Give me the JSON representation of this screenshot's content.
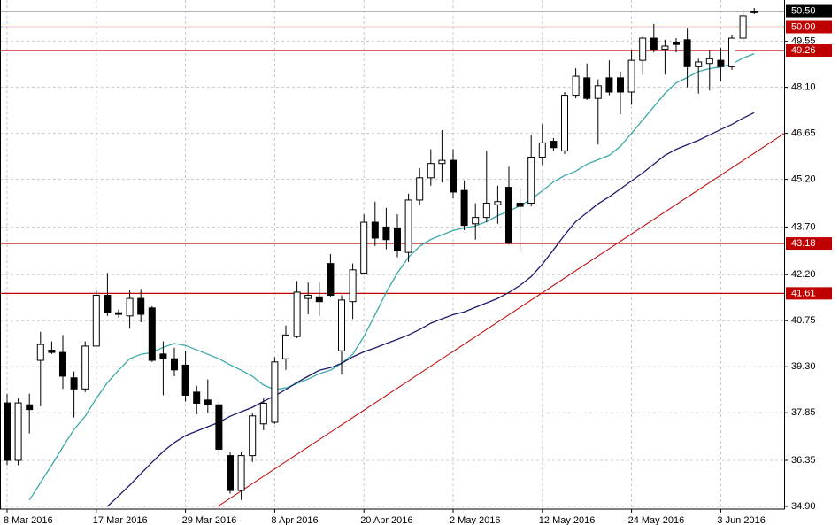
{
  "chart_data": {
    "type": "candlestick",
    "categories": [
      "8 Mar 2016",
      null,
      null,
      null,
      null,
      null,
      null,
      null,
      "17 Mar 2016",
      null,
      null,
      null,
      null,
      null,
      null,
      null,
      "29 Mar 2016",
      null,
      null,
      null,
      null,
      null,
      null,
      null,
      "8 Apr 2016",
      null,
      null,
      null,
      null,
      null,
      null,
      null,
      "20 Apr 2016",
      null,
      null,
      null,
      null,
      null,
      null,
      null,
      "2 May 2016",
      null,
      null,
      null,
      null,
      null,
      null,
      null,
      "12 May 2016",
      null,
      null,
      null,
      null,
      null,
      null,
      null,
      "24 May 2016",
      null,
      null,
      null,
      null,
      null,
      null,
      null,
      "3 Jun 2016",
      null,
      null,
      null
    ],
    "open": [
      38.16,
      36.35,
      38.1,
      39.5,
      39.82,
      39.75,
      38.95,
      38.6,
      39.95,
      41.55,
      41.0,
      40.9,
      41.45,
      41.15,
      39.7,
      39.55,
      39.35,
      38.5,
      38.25,
      38.1,
      36.5,
      35.4,
      36.5,
      37.5,
      37.55,
      39.55,
      40.25,
      41.45,
      41.5,
      42.55,
      39.8,
      41.35,
      42.25,
      43.85,
      43.7,
      43.65,
      42.9,
      44.55,
      45.25,
      45.7,
      45.8,
      44.85,
      43.8,
      44.0,
      44.4,
      44.95,
      44.45,
      44.45,
      45.9,
      46.4,
      46.1,
      47.85,
      48.4,
      47.75,
      48.4,
      48.4,
      47.95,
      48.95,
      49.65,
      49.3,
      49.5,
      49.6,
      48.75,
      48.85,
      48.95,
      48.75,
      49.65,
      50.45
    ],
    "high": [
      38.44,
      38.3,
      38.45,
      40.4,
      40.1,
      40.3,
      39.15,
      40.1,
      41.7,
      42.25,
      41.1,
      41.7,
      41.75,
      41.2,
      40.1,
      39.9,
      39.8,
      38.7,
      38.9,
      38.2,
      36.6,
      36.6,
      37.85,
      38.3,
      39.6,
      40.6,
      42.0,
      41.95,
      41.95,
      42.85,
      41.55,
      42.55,
      44.1,
      44.5,
      44.3,
      44.1,
      44.75,
      45.55,
      46.15,
      46.75,
      46.15,
      45.15,
      44.45,
      46.1,
      45.0,
      45.6,
      44.9,
      46.6,
      46.95,
      46.5,
      47.95,
      48.7,
      48.85,
      48.35,
      48.95,
      48.6,
      49.25,
      49.7,
      50.1,
      49.6,
      49.65,
      49.95,
      49.0,
      49.25,
      49.35,
      49.75,
      50.55,
      50.6
    ],
    "low": [
      36.2,
      36.2,
      37.2,
      38.05,
      39.7,
      38.6,
      37.7,
      38.5,
      39.95,
      40.9,
      40.85,
      40.5,
      40.7,
      39.45,
      38.4,
      39.0,
      38.2,
      37.8,
      37.85,
      36.5,
      35.3,
      35.1,
      36.3,
      37.3,
      37.5,
      39.2,
      40.2,
      40.95,
      40.9,
      41.5,
      39.05,
      40.8,
      42.2,
      43.1,
      43.0,
      42.75,
      42.6,
      44.4,
      45.0,
      45.1,
      44.6,
      43.6,
      43.3,
      43.85,
      43.8,
      43.15,
      42.95,
      44.35,
      45.65,
      46.1,
      46.0,
      47.75,
      47.7,
      46.3,
      47.85,
      47.25,
      47.55,
      48.5,
      49.2,
      48.5,
      49.2,
      48.1,
      47.9,
      48.0,
      48.3,
      48.65,
      49.55,
      50.4
    ],
    "close": [
      36.35,
      38.16,
      37.95,
      40.0,
      39.75,
      39.0,
      38.6,
      39.95,
      41.55,
      41.0,
      40.95,
      41.45,
      40.95,
      39.5,
      39.55,
      39.2,
      38.4,
      38.15,
      38.1,
      36.7,
      35.4,
      36.5,
      37.75,
      38.15,
      39.45,
      40.3,
      41.65,
      41.55,
      41.35,
      41.55,
      41.4,
      42.35,
      43.85,
      43.35,
      43.3,
      42.95,
      44.55,
      45.25,
      45.7,
      45.8,
      44.8,
      43.75,
      44.0,
      44.45,
      44.5,
      43.2,
      44.35,
      45.9,
      46.35,
      46.2,
      47.85,
      48.45,
      47.75,
      48.15,
      47.95,
      47.95,
      48.95,
      49.65,
      49.3,
      49.4,
      49.45,
      48.75,
      48.9,
      49.0,
      48.75,
      49.65,
      50.35,
      50.5
    ],
    "up_color": "#ffffff",
    "down_color": "#000000",
    "series": [
      {
        "color": "#3aa8a8",
        "values": [
          null,
          null,
          35.1,
          35.65,
          36.2,
          36.77,
          37.32,
          37.74,
          38.3,
          38.8,
          39.19,
          39.55,
          39.69,
          39.75,
          39.91,
          40.03,
          39.97,
          39.83,
          39.69,
          39.55,
          39.36,
          39.19,
          39.0,
          38.72,
          38.58,
          38.63,
          38.77,
          38.91,
          39.08,
          39.19,
          39.41,
          39.69,
          40.25,
          40.94,
          41.64,
          42.25,
          42.75,
          43.09,
          43.31,
          43.45,
          43.59,
          43.67,
          43.73,
          43.87,
          44.06,
          44.2,
          44.37,
          44.57,
          44.84,
          45.12,
          45.32,
          45.46,
          45.68,
          45.82,
          45.96,
          46.24,
          46.65,
          47.07,
          47.49,
          47.91,
          48.24,
          48.41,
          48.6,
          48.69,
          48.74,
          48.83,
          49.02,
          49.16
        ]
      },
      {
        "color": "#1c1c6b",
        "values": [
          null,
          null,
          null,
          null,
          null,
          null,
          null,
          null,
          null,
          34.9,
          35.23,
          35.57,
          35.93,
          36.29,
          36.63,
          36.91,
          37.13,
          37.27,
          37.41,
          37.55,
          37.74,
          37.88,
          38.02,
          38.21,
          38.38,
          38.58,
          38.8,
          39.0,
          39.19,
          39.27,
          39.41,
          39.61,
          39.77,
          39.89,
          40.03,
          40.16,
          40.3,
          40.47,
          40.67,
          40.81,
          40.94,
          41.03,
          41.17,
          41.31,
          41.45,
          41.64,
          41.86,
          42.14,
          42.53,
          42.98,
          43.45,
          43.87,
          44.15,
          44.43,
          44.65,
          44.9,
          45.15,
          45.4,
          45.68,
          45.96,
          46.15,
          46.29,
          46.43,
          46.6,
          46.77,
          46.93,
          47.13,
          47.3
        ]
      }
    ],
    "levels": [
      {
        "value": 50.0,
        "label": "50.00"
      },
      {
        "value": 49.26,
        "label": "49.26"
      },
      {
        "value": 43.18,
        "label": "43.18"
      },
      {
        "value": 41.61,
        "label": "41.61"
      }
    ],
    "level_color": "#c00000",
    "current_price": {
      "value": 50.5,
      "label": "50.50"
    },
    "trendline": {
      "x": [
        18.9,
        69.7
      ],
      "y": [
        34.9,
        46.65
      ],
      "color": "#c00000"
    },
    "ylim": [
      34.9,
      50.85
    ],
    "yticks": [
      {
        "value": 34.9,
        "label": "34.90"
      },
      36.35,
      37.85,
      {
        "value": 39.3,
        "label": "39.30"
      },
      40.75,
      {
        "value": 42.2,
        "label": "42.20"
      },
      {
        "value": 43.7,
        "label": "43.70"
      },
      {
        "value": 45.2,
        "label": "45.20"
      },
      46.65,
      {
        "value": 48.1,
        "label": "48.10"
      },
      49.55
    ],
    "grid": true
  }
}
